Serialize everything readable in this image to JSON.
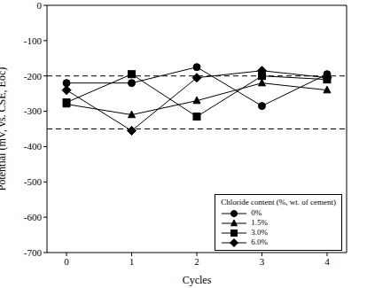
{
  "chart_data": {
    "type": "line",
    "x_label": "Cycles",
    "y_label": "Potential (mV, vs. CSE, Eoc)",
    "x": [
      0,
      1,
      2,
      3,
      4
    ],
    "xlim": [
      -0.3,
      4.3
    ],
    "xticks": [
      0,
      1,
      2,
      3,
      4
    ],
    "ylim": [
      -700,
      0
    ],
    "yticks": [
      -700,
      -600,
      -500,
      -400,
      -300,
      -200,
      -100,
      0
    ],
    "reference_lines": [
      -200,
      -350
    ],
    "legend": "lower right",
    "legend_title": "Chloride content (%, wt. of cement)",
    "series": [
      {
        "name": "0%",
        "color": "#000000",
        "marker": "circle",
        "values": [
          -220,
          -220,
          -175,
          -285,
          -195
        ]
      },
      {
        "name": "1.5%",
        "color": "#000000",
        "marker": "triangle",
        "values": [
          -280,
          -310,
          -270,
          -220,
          -240
        ]
      },
      {
        "name": "3.0%",
        "color": "#000000",
        "marker": "square",
        "values": [
          -275,
          -195,
          -315,
          -200,
          -210
        ]
      },
      {
        "name": "6.0%",
        "color": "#000000",
        "marker": "diamond",
        "values": [
          -240,
          -355,
          -205,
          -185,
          -205
        ]
      }
    ]
  }
}
